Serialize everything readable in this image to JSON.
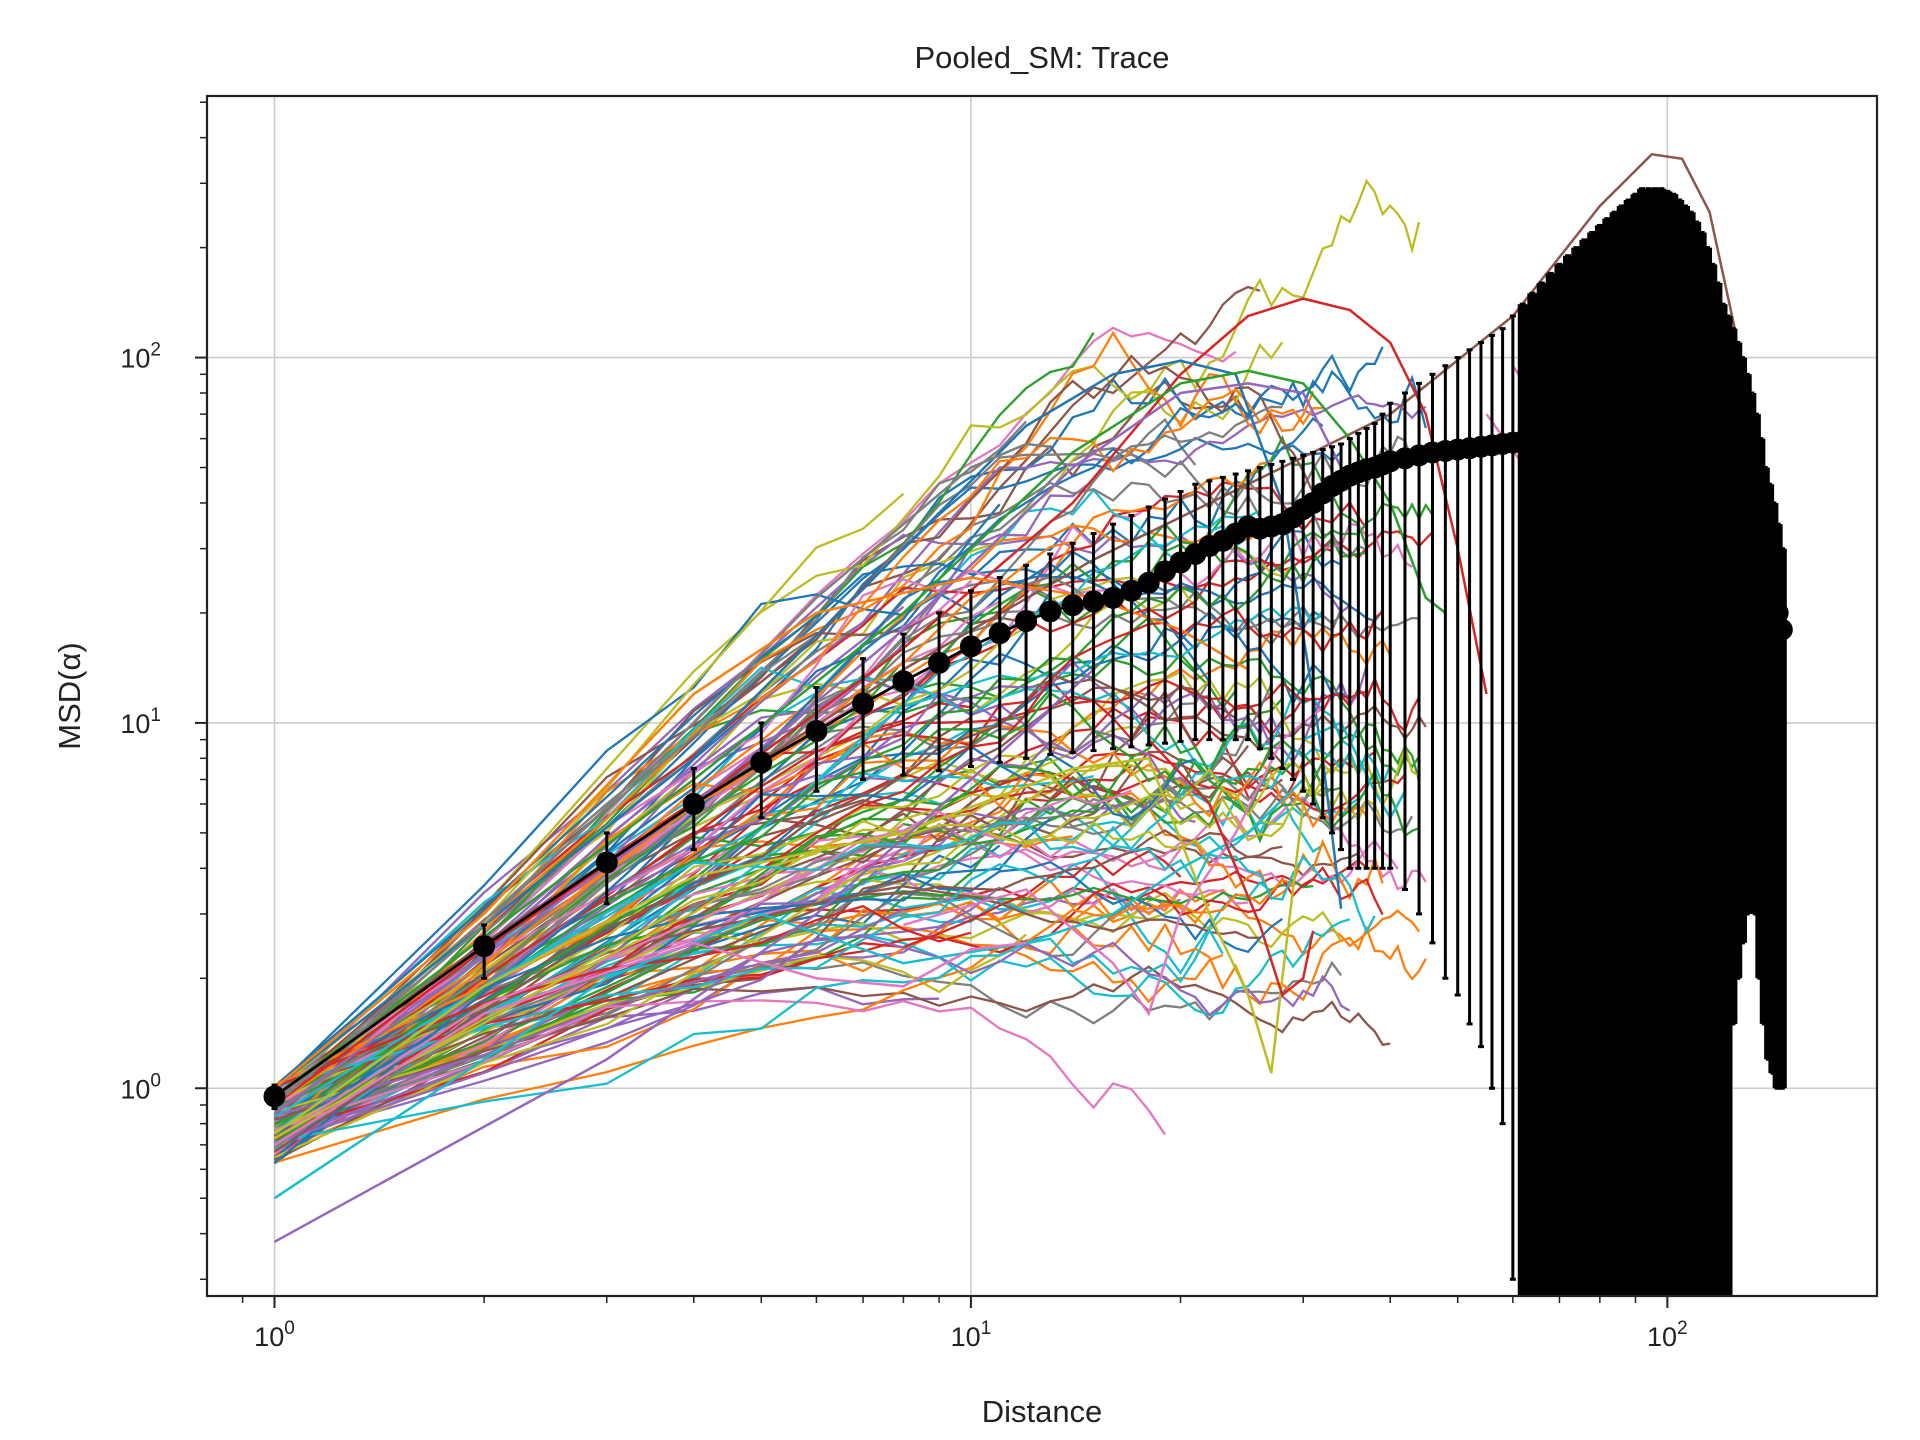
{
  "chart_data": {
    "type": "line",
    "title": "Pooled_SM: Trace",
    "xlabel": "Distance",
    "ylabel": "MSD(α)",
    "xscale": "log",
    "yscale": "log",
    "xlim": [
      0.8,
      200
    ],
    "ylim": [
      0.27,
      520
    ],
    "grid": true,
    "x_ticks": [
      {
        "base": "10",
        "exp": "0",
        "value": 1
      },
      {
        "base": "10",
        "exp": "1",
        "value": 10
      },
      {
        "base": "10",
        "exp": "2",
        "value": 100
      }
    ],
    "y_ticks": [
      {
        "base": "10",
        "exp": "0",
        "value": 1
      },
      {
        "base": "10",
        "exp": "1",
        "value": 10
      },
      {
        "base": "10",
        "exp": "2",
        "value": 100
      }
    ],
    "colors": [
      "#1f77b4",
      "#ff7f0e",
      "#2ca02c",
      "#d62728",
      "#9467bd",
      "#8c564b",
      "#e377c2",
      "#7f7f7f",
      "#bcbd22",
      "#17becf"
    ],
    "series_count_estimate": 150,
    "individual_traces": [
      {
        "color": "#8c564b",
        "x": [
          1,
          2,
          4,
          8,
          15,
          25,
          40,
          60,
          80,
          95,
          105,
          115,
          125,
          135,
          143
        ],
        "y": [
          0.95,
          2.5,
          6,
          14,
          28,
          45,
          70,
          130,
          260,
          360,
          350,
          250,
          120,
          40,
          7.5
        ]
      },
      {
        "color": "#d62728",
        "x": [
          1,
          2,
          4,
          8,
          14,
          20,
          25,
          30,
          35,
          40,
          45,
          50,
          55
        ],
        "y": [
          0.9,
          2.4,
          6,
          16,
          40,
          90,
          130,
          145,
          135,
          110,
          70,
          30,
          12
        ]
      },
      {
        "color": "#1f77b4",
        "x": [
          1,
          2,
          4,
          8,
          12,
          16,
          20,
          24,
          28,
          32,
          34
        ],
        "y": [
          1.0,
          2.8,
          8,
          30,
          65,
          90,
          98,
          90,
          40,
          8,
          3.1
        ]
      },
      {
        "color": "#2ca02c",
        "x": [
          1,
          2,
          4,
          8,
          14,
          20,
          25,
          30,
          35,
          40,
          45,
          48
        ],
        "y": [
          0.95,
          2.6,
          7,
          20,
          55,
          85,
          92,
          85,
          60,
          40,
          22,
          20
        ]
      },
      {
        "color": "#9467bd",
        "x": [
          1,
          2,
          4,
          8,
          14,
          20,
          25,
          30,
          35
        ],
        "y": [
          0.85,
          2.3,
          6,
          18,
          50,
          80,
          85,
          80,
          45
        ]
      },
      {
        "color": "#e377c2",
        "x": [
          60,
          70,
          80,
          90,
          100,
          110,
          120
        ],
        "y": [
          95,
          60,
          35,
          25,
          22,
          18,
          15
        ]
      },
      {
        "color": "#e377c2",
        "x": [
          55,
          65,
          75,
          85,
          95,
          105,
          112
        ],
        "y": [
          70,
          45,
          30,
          33,
          40,
          60,
          100
        ]
      },
      {
        "color": "#7f7f7f",
        "x": [
          1,
          2,
          4,
          6,
          8,
          10,
          12,
          13
        ],
        "y": [
          0.9,
          2.8,
          10,
          22,
          35,
          50,
          58,
          57
        ]
      },
      {
        "color": "#bcbd22",
        "x": [
          1,
          2,
          4,
          8,
          14,
          18,
          22,
          25,
          27,
          28,
          30
        ],
        "y": [
          0.75,
          1.9,
          3.8,
          5,
          7.5,
          8,
          3,
          1.8,
          1.1,
          2,
          6
        ]
      },
      {
        "color": "#17becf",
        "x": [
          1,
          2,
          3,
          5,
          8,
          12,
          16,
          20,
          25,
          30
        ],
        "y": [
          0.5,
          1.2,
          2,
          3,
          2.2,
          2.5,
          3,
          4,
          5,
          7
        ]
      },
      {
        "color": "#9467bd",
        "x": [
          1,
          3,
          6,
          10,
          15
        ],
        "y": [
          0.38,
          1.2,
          3,
          7,
          14
        ]
      },
      {
        "color": "#ff7f0e",
        "x": [
          1,
          2,
          4,
          6,
          10,
          15,
          20,
          25
        ],
        "y": [
          1.0,
          3,
          12,
          20,
          25,
          22,
          18,
          14
        ]
      },
      {
        "color": "#e377c2",
        "x": [
          1,
          2,
          4,
          6,
          8,
          10,
          12
        ],
        "y": [
          0.7,
          1.6,
          2.5,
          2,
          1.9,
          2.4,
          2.5
        ]
      },
      {
        "color": "#e377c2",
        "x": [
          8,
          12,
          16,
          18,
          20,
          24,
          28,
          32
        ],
        "y": [
          2.8,
          3.5,
          2.2,
          1.6,
          3,
          5,
          9,
          11
        ]
      },
      {
        "color": "#d62728",
        "x": [
          18,
          22,
          26,
          28,
          30,
          31
        ],
        "y": [
          9,
          6,
          2.8,
          1.8,
          2,
          2.7
        ]
      },
      {
        "color": "#17becf",
        "x": [
          30,
          34,
          38,
          40,
          42
        ],
        "y": [
          9,
          10,
          6.5,
          5.5,
          6.5
        ]
      }
    ],
    "mean_trace": {
      "name": "mean",
      "color": "#000000",
      "x": [
        1,
        2,
        3,
        4,
        5,
        6,
        7,
        8,
        9,
        10,
        11,
        12,
        13,
        14,
        15,
        16,
        17,
        18,
        19,
        20,
        21,
        22,
        23,
        24,
        25,
        26,
        27,
        28,
        29,
        30,
        31,
        32,
        33,
        34,
        35,
        36,
        37,
        38,
        39,
        40,
        42,
        44,
        46,
        48,
        50,
        52,
        54,
        56,
        58,
        60,
        62,
        64,
        66,
        68,
        70,
        72,
        74,
        76,
        78,
        80,
        82,
        84,
        86,
        88,
        90,
        92,
        94,
        96,
        98,
        100,
        102,
        104,
        106,
        108,
        110,
        112,
        114,
        116,
        118,
        120,
        122,
        124,
        126,
        128,
        130,
        132,
        134,
        136,
        138,
        140,
        142,
        144,
        146
      ],
      "y": [
        0.95,
        2.45,
        4.15,
        6.0,
        7.8,
        9.5,
        11.3,
        13.0,
        14.6,
        16.2,
        17.6,
        19.0,
        20.2,
        21.0,
        21.5,
        22.0,
        23.0,
        24.2,
        26.0,
        27.5,
        29.0,
        30.5,
        31.5,
        33.0,
        34.5,
        34.0,
        34.5,
        35.0,
        36.5,
        38.5,
        40.0,
        42.5,
        44.5,
        46.0,
        47.5,
        48.5,
        49.5,
        50.0,
        51.0,
        52.0,
        53.0,
        54.0,
        55.0,
        55.5,
        56.0,
        56.5,
        57.0,
        57.5,
        58.0,
        58.5,
        59.0,
        59.5,
        60.0,
        60.5,
        61.0,
        61.5,
        62.0,
        62.5,
        63.0,
        63.5,
        64.0,
        64.5,
        65.0,
        65.5,
        66.0,
        66.5,
        67.0,
        67.5,
        68.0,
        68.5,
        69.0,
        69.5,
        69.0,
        68.0,
        66.0,
        63.0,
        60.0,
        56.0,
        52.0,
        48.0,
        45.0,
        44.0,
        43.0,
        42.0,
        41.0,
        40.0,
        38.0,
        35.0,
        32.0,
        28.0,
        24.0,
        20.0,
        18.0
      ],
      "error_band_upper": [
        1.02,
        2.8,
        5.0,
        7.5,
        10,
        12.5,
        15,
        17.5,
        20,
        23,
        25,
        27,
        29,
        31,
        33,
        35,
        37,
        39,
        41,
        43,
        45,
        46,
        47,
        48,
        49,
        50,
        51,
        52,
        53,
        54,
        55,
        56,
        57,
        58,
        60,
        62,
        64,
        66,
        70,
        75,
        80,
        85,
        90,
        95,
        100,
        105,
        110,
        115,
        120,
        130,
        140,
        150,
        160,
        170,
        180,
        190,
        200,
        210,
        220,
        230,
        240,
        250,
        260,
        270,
        280,
        290,
        290,
        290,
        290,
        285,
        280,
        270,
        260,
        250,
        235,
        220,
        200,
        180,
        160,
        140,
        130,
        120,
        110,
        100,
        90,
        80,
        70,
        60,
        50,
        45,
        40,
        35,
        30
      ],
      "error_band_lower": [
        0.88,
        2.0,
        3.2,
        4.5,
        5.5,
        6.5,
        7.0,
        7.2,
        7.4,
        7.6,
        7.8,
        8.0,
        8.2,
        8.3,
        8.4,
        8.5,
        8.6,
        8.7,
        8.8,
        8.9,
        9.0,
        9.0,
        9.0,
        9.0,
        9.0,
        8.5,
        8.0,
        7.5,
        7.0,
        6.5,
        6.0,
        5.5,
        5.0,
        4.5,
        4.0,
        4.0,
        4.0,
        4.0,
        4.0,
        4.0,
        3.5,
        3.0,
        2.5,
        2.0,
        1.8,
        1.5,
        1.3,
        1.0,
        0.8,
        0.3,
        0.25,
        0.25,
        0.25,
        0.25,
        0.25,
        0.25,
        0.25,
        0.25,
        0.25,
        0.25,
        0.25,
        0.25,
        0.25,
        0.25,
        0.25,
        0.25,
        0.25,
        0.25,
        0.25,
        0.25,
        0.25,
        0.25,
        0.25,
        0.25,
        0.25,
        0.25,
        0.25,
        0.25,
        0.25,
        0.25,
        0.25,
        1.5,
        2.0,
        2.5,
        3.0,
        3.5,
        3.0,
        2.0,
        1.5,
        1.2,
        1.1,
        1.0,
        1.0
      ]
    }
  }
}
